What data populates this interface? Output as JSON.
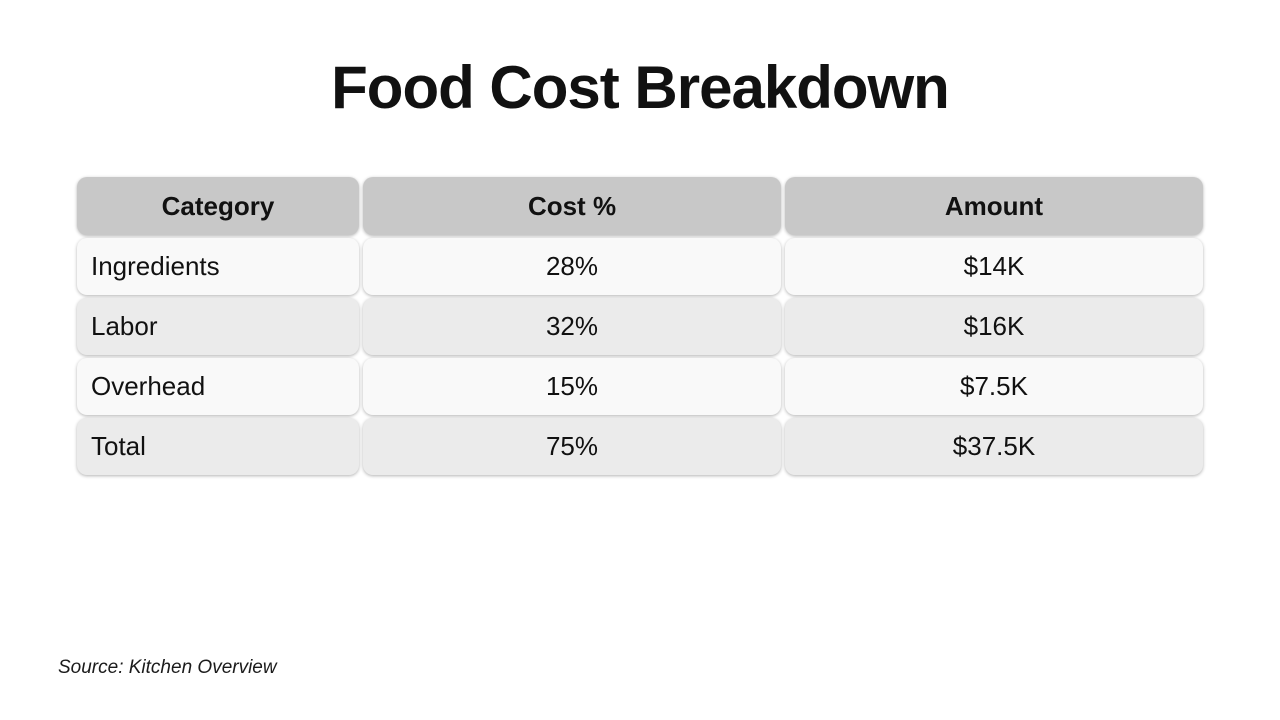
{
  "title": "Food Cost Breakdown",
  "source": "Source: Kitchen Overview",
  "colors": {
    "title-text": "#111111",
    "header-bg": "#c8c8c8",
    "row-light": "#f9f9f9",
    "row-dark": "#ebebeb"
  },
  "chart_data": {
    "type": "table",
    "title": "Food Cost Breakdown",
    "columns": [
      "Category",
      "Cost %",
      "Amount"
    ],
    "rows": [
      {
        "category": "Ingredients",
        "cost_pct": "28%",
        "amount": "$14K"
      },
      {
        "category": "Labor",
        "cost_pct": "32%",
        "amount": "$16K"
      },
      {
        "category": "Overhead",
        "cost_pct": "15%",
        "amount": "$7.5K"
      },
      {
        "category": "Total",
        "cost_pct": "75%",
        "amount": "$37.5K"
      }
    ],
    "cost_pct_values": [
      28,
      32,
      15,
      75
    ],
    "amount_values_usd": [
      14000,
      16000,
      7500,
      37500
    ],
    "source": "Source: Kitchen Overview"
  }
}
